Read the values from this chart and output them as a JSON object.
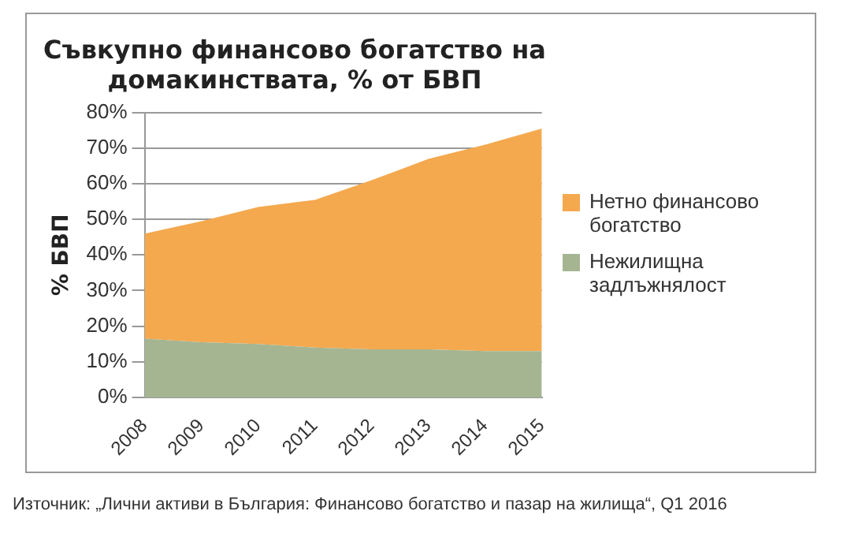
{
  "chart_data": {
    "type": "area",
    "title": "Съвкупно финансово богатство на домакинствата, % от БВП",
    "ylabel": "% БВП",
    "categories": [
      "2008",
      "2009",
      "2010",
      "2011",
      "2012",
      "2013",
      "2014",
      "2015"
    ],
    "stacked": true,
    "series": [
      {
        "name": "Нежилищна задлъжнялост",
        "color": "#a5b592",
        "values": [
          16.5,
          15.5,
          15,
          14,
          13.5,
          13.5,
          13,
          13
        ]
      },
      {
        "name": "Нетно финансово богатство",
        "color": "#f4a94f",
        "values": [
          29.5,
          34,
          38.5,
          41.5,
          47.5,
          53.5,
          58,
          62.5
        ]
      }
    ],
    "ylim": [
      0,
      80
    ],
    "yticks": [
      {
        "value": 0,
        "label": "0%"
      },
      {
        "value": 10,
        "label": "10%"
      },
      {
        "value": 20,
        "label": "20%"
      },
      {
        "value": 30,
        "label": "30%"
      },
      {
        "value": 40,
        "label": "40%"
      },
      {
        "value": 50,
        "label": "50%"
      },
      {
        "value": 60,
        "label": "60%"
      },
      {
        "value": 70,
        "label": "70%"
      },
      {
        "value": 80,
        "label": "80%"
      }
    ],
    "grid": "y",
    "legend": "right",
    "annotations": [
      "Източник: „Лични активи в България: Финансово богатство и пазар на жилища“, Q1 2016"
    ]
  }
}
